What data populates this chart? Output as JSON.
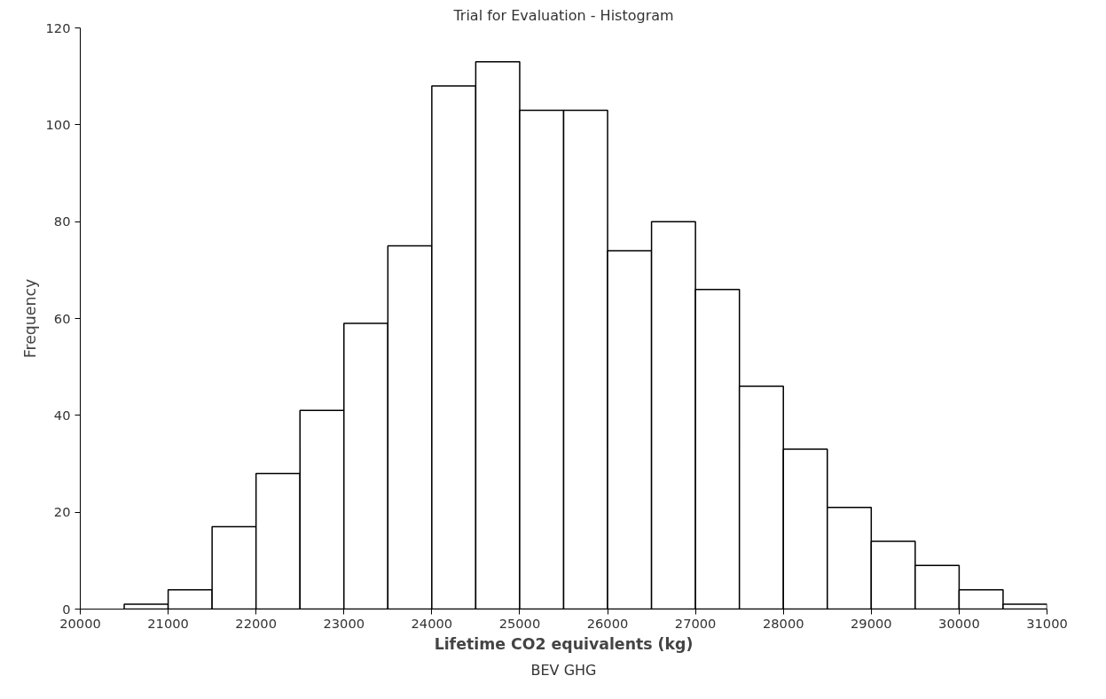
{
  "chart_data": {
    "type": "histogram",
    "title": "Trial for Evaluation - Histogram",
    "xlabel": "Lifetime CO2 equivalents (kg)",
    "ylabel": "Frequency",
    "annotations": [
      "BEV GHG"
    ],
    "bins": [
      20500,
      21000,
      21500,
      22000,
      22500,
      23000,
      23500,
      24000,
      24500,
      25000,
      25500,
      26000,
      26500,
      27000,
      27500,
      28000,
      28500,
      29000,
      29500,
      30000,
      30500,
      31000
    ],
    "values": [
      1,
      4,
      17,
      28,
      41,
      59,
      75,
      108,
      113,
      103,
      103,
      74,
      80,
      66,
      46,
      33,
      21,
      14,
      9,
      4,
      1
    ],
    "color": "#ffffff",
    "xlim": [
      20000,
      31000
    ],
    "xticks": [
      20000,
      21000,
      22000,
      23000,
      24000,
      25000,
      26000,
      27000,
      28000,
      29000,
      30000,
      31000
    ],
    "ylim": [
      0,
      120
    ],
    "yticks": [
      0,
      20,
      40,
      60,
      80,
      100,
      120
    ],
    "grid": false
  }
}
